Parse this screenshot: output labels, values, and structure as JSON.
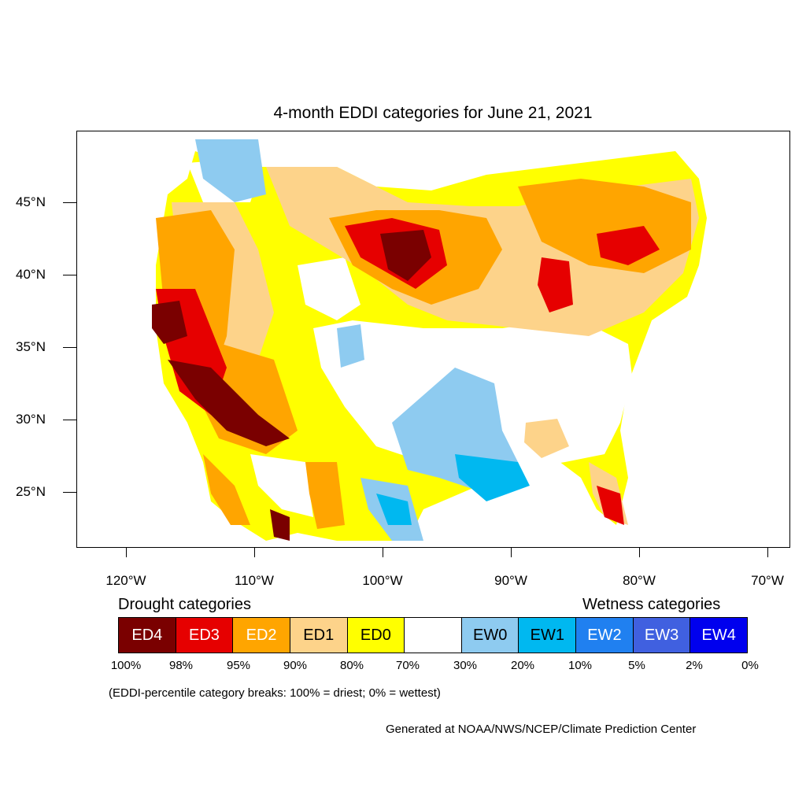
{
  "title": "4-month EDDI categories for June 21, 2021",
  "y_axis": {
    "ticks": [
      {
        "label": "45°N",
        "lat": 45
      },
      {
        "label": "40°N",
        "lat": 40
      },
      {
        "label": "35°N",
        "lat": 35
      },
      {
        "label": "30°N",
        "lat": 30
      },
      {
        "label": "25°N",
        "lat": 25
      }
    ]
  },
  "x_axis": {
    "ticks": [
      {
        "label": "120°W",
        "lon": -120
      },
      {
        "label": "110°W",
        "lon": -110
      },
      {
        "label": "100°W",
        "lon": -100
      },
      {
        "label": "90°W",
        "lon": -90
      },
      {
        "label": "80°W",
        "lon": -80
      },
      {
        "label": "70°W",
        "lon": -70
      }
    ]
  },
  "legend": {
    "drought_heading": "Drought categories",
    "wetness_heading": "Wetness categories",
    "categories": [
      {
        "label": "ED4",
        "color": "#7a0000",
        "text_color": "#ffffff"
      },
      {
        "label": "ED3",
        "color": "#e60000",
        "text_color": "#ffffff"
      },
      {
        "label": "ED2",
        "color": "#ffa500",
        "text_color": "#ffffff"
      },
      {
        "label": "ED1",
        "color": "#fdd38a",
        "text_color": "#000000"
      },
      {
        "label": "ED0",
        "color": "#ffff00",
        "text_color": "#000000"
      },
      {
        "label": "",
        "color": "#ffffff",
        "text_color": "#000000"
      },
      {
        "label": "EW0",
        "color": "#8ecbf0",
        "text_color": "#000000"
      },
      {
        "label": "EW1",
        "color": "#00b8f0",
        "text_color": "#000000"
      },
      {
        "label": "EW2",
        "color": "#2080f0",
        "text_color": "#ffffff"
      },
      {
        "label": "EW3",
        "color": "#4060e0",
        "text_color": "#ffffff"
      },
      {
        "label": "EW4",
        "color": "#0000ee",
        "text_color": "#ffffff"
      }
    ],
    "percentiles": [
      "100%",
      "98%",
      "95%",
      "90%",
      "80%",
      "70%",
      "30%",
      "20%",
      "10%",
      "5%",
      "2%",
      "0%"
    ]
  },
  "note": "(EDDI-percentile category breaks: 100% = driest; 0% = wettest)",
  "credit": "Generated at NOAA/NWS/NCEP/Climate Prediction Center"
}
